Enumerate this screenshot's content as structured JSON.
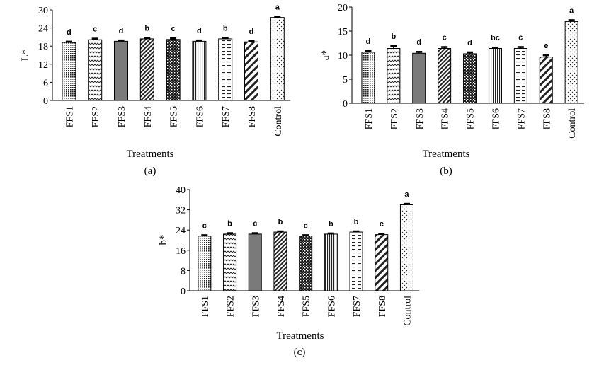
{
  "chart_data": [
    {
      "type": "bar",
      "panel_label": "(a)",
      "categories": [
        "FFS1",
        "FFS2",
        "FFS3",
        "FFS4",
        "FFS5",
        "FFS6",
        "FFS7",
        "FFS8",
        "Control"
      ],
      "values": [
        19.2,
        20.1,
        19.6,
        20.4,
        20.2,
        19.6,
        20.4,
        19.4,
        27.5
      ],
      "errors": [
        0.3,
        0.4,
        0.3,
        0.4,
        0.4,
        0.3,
        0.4,
        0.3,
        0.3
      ],
      "significance": [
        "d",
        "c",
        "d",
        "b",
        "c",
        "d",
        "b",
        "d",
        "a"
      ],
      "xlabel": "Treatments",
      "ylabel": "L*",
      "ylim": [
        0,
        30
      ],
      "yticks": [
        0,
        6,
        12,
        18,
        24,
        30
      ],
      "grid": false
    },
    {
      "type": "bar",
      "panel_label": "(b)",
      "categories": [
        "FFS1",
        "FFS2",
        "FFS3",
        "FFS4",
        "FFS5",
        "FFS6",
        "FFS7",
        "FFS8",
        "Control"
      ],
      "values": [
        10.6,
        11.4,
        10.4,
        11.4,
        10.3,
        11.4,
        11.4,
        9.6,
        17.0
      ],
      "errors": [
        0.3,
        0.5,
        0.3,
        0.3,
        0.3,
        0.2,
        0.3,
        0.4,
        0.3
      ],
      "significance": [
        "d",
        "b",
        "d",
        "c",
        "d",
        "bc",
        "c",
        "e",
        "a"
      ],
      "xlabel": "Treatments",
      "ylabel": "a*",
      "ylim": [
        0,
        20
      ],
      "yticks": [
        0,
        5,
        10,
        15,
        20
      ],
      "grid": false
    },
    {
      "type": "bar",
      "panel_label": "(c)",
      "categories": [
        "FFS1",
        "FFS2",
        "FFS3",
        "FFS4",
        "FFS5",
        "FFS6",
        "FFS7",
        "FFS8",
        "Control"
      ],
      "values": [
        21.6,
        22.4,
        22.4,
        23.2,
        21.6,
        22.4,
        23.2,
        22.2,
        34.0
      ],
      "errors": [
        0.4,
        0.4,
        0.4,
        0.3,
        0.4,
        0.3,
        0.3,
        0.4,
        0.4
      ],
      "significance": [
        "c",
        "b",
        "c",
        "b",
        "c",
        "b",
        "b",
        "c",
        "a"
      ],
      "xlabel": "Treatments",
      "ylabel": "b*",
      "ylim": [
        0,
        40
      ],
      "yticks": [
        0,
        8,
        16,
        24,
        32,
        40
      ],
      "grid": false
    }
  ],
  "patterns": [
    "grid-dots",
    "zigzag",
    "solid-gray",
    "diag-dense",
    "checker-dark",
    "vertical-lines",
    "horizontal-dashes",
    "diag-wide",
    "sparse-dots"
  ]
}
